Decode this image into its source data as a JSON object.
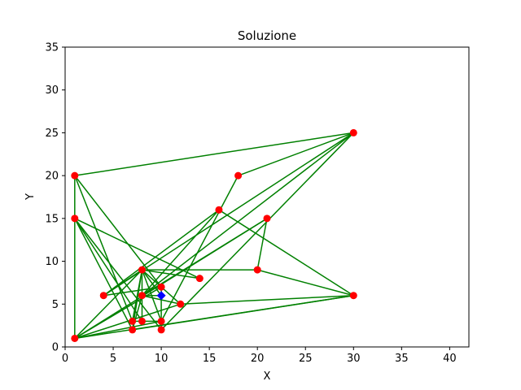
{
  "chart_data": {
    "type": "scatter",
    "title": "Soluzione",
    "xlabel": "X",
    "ylabel": "Y",
    "xlim": [
      0,
      42
    ],
    "ylim": [
      0,
      35
    ],
    "xticks": [
      0,
      5,
      10,
      15,
      20,
      25,
      30,
      35,
      40
    ],
    "yticks": [
      0,
      5,
      10,
      15,
      20,
      25,
      30,
      35
    ],
    "grid": false,
    "colors": {
      "edges": "#008000",
      "nodes": "#ff0000",
      "depot": "#0000ff"
    },
    "depot": {
      "x": 10,
      "y": 6
    },
    "nodes": [
      {
        "x": 1,
        "y": 20
      },
      {
        "x": 1,
        "y": 15
      },
      {
        "x": 1,
        "y": 1
      },
      {
        "x": 4,
        "y": 6
      },
      {
        "x": 7,
        "y": 3
      },
      {
        "x": 7,
        "y": 2
      },
      {
        "x": 8,
        "y": 9
      },
      {
        "x": 8,
        "y": 6
      },
      {
        "x": 8,
        "y": 3
      },
      {
        "x": 10,
        "y": 7
      },
      {
        "x": 10,
        "y": 3
      },
      {
        "x": 10,
        "y": 2
      },
      {
        "x": 12,
        "y": 5
      },
      {
        "x": 14,
        "y": 8
      },
      {
        "x": 16,
        "y": 16
      },
      {
        "x": 18,
        "y": 20
      },
      {
        "x": 20,
        "y": 9
      },
      {
        "x": 21,
        "y": 15
      },
      {
        "x": 30,
        "y": 25
      },
      {
        "x": 30,
        "y": 6
      }
    ],
    "edges": [
      [
        [
          1,
          20
        ],
        [
          30,
          25
        ]
      ],
      [
        [
          1,
          20
        ],
        [
          1,
          1
        ]
      ],
      [
        [
          1,
          20
        ],
        [
          7,
          3
        ]
      ],
      [
        [
          1,
          20
        ],
        [
          10,
          7
        ]
      ],
      [
        [
          1,
          15
        ],
        [
          7,
          2
        ]
      ],
      [
        [
          1,
          15
        ],
        [
          8,
          3
        ]
      ],
      [
        [
          1,
          15
        ],
        [
          10,
          2
        ]
      ],
      [
        [
          1,
          15
        ],
        [
          14,
          8
        ]
      ],
      [
        [
          1,
          1
        ],
        [
          8,
          9
        ]
      ],
      [
        [
          1,
          1
        ],
        [
          10,
          7
        ]
      ],
      [
        [
          1,
          1
        ],
        [
          10,
          3
        ]
      ],
      [
        [
          1,
          1
        ],
        [
          30,
          6
        ]
      ],
      [
        [
          1,
          1
        ],
        [
          21,
          15
        ]
      ],
      [
        [
          1,
          1
        ],
        [
          12,
          5
        ]
      ],
      [
        [
          4,
          6
        ],
        [
          8,
          9
        ]
      ],
      [
        [
          4,
          6
        ],
        [
          10,
          7
        ]
      ],
      [
        [
          4,
          6
        ],
        [
          16,
          16
        ]
      ],
      [
        [
          4,
          6
        ],
        [
          30,
          25
        ]
      ],
      [
        [
          8,
          9
        ],
        [
          20,
          9
        ]
      ],
      [
        [
          8,
          9
        ],
        [
          7,
          2
        ]
      ],
      [
        [
          8,
          9
        ],
        [
          7,
          3
        ]
      ],
      [
        [
          8,
          9
        ],
        [
          10,
          3
        ]
      ],
      [
        [
          8,
          9
        ],
        [
          8,
          3
        ]
      ],
      [
        [
          8,
          9
        ],
        [
          14,
          8
        ]
      ],
      [
        [
          8,
          9
        ],
        [
          10,
          6
        ]
      ],
      [
        [
          7,
          3
        ],
        [
          10,
          3
        ]
      ],
      [
        [
          7,
          2
        ],
        [
          30,
          6
        ]
      ],
      [
        [
          7,
          2
        ],
        [
          8,
          6
        ]
      ],
      [
        [
          8,
          6
        ],
        [
          10,
          6
        ]
      ],
      [
        [
          8,
          6
        ],
        [
          12,
          5
        ]
      ],
      [
        [
          8,
          6
        ],
        [
          30,
          25
        ]
      ],
      [
        [
          8,
          6
        ],
        [
          21,
          15
        ]
      ],
      [
        [
          10,
          2
        ],
        [
          10,
          7
        ]
      ],
      [
        [
          12,
          5
        ],
        [
          30,
          6
        ]
      ],
      [
        [
          12,
          5
        ],
        [
          8,
          9
        ]
      ],
      [
        [
          16,
          16
        ],
        [
          30,
          6
        ]
      ],
      [
        [
          16,
          16
        ],
        [
          8,
          6
        ]
      ],
      [
        [
          18,
          20
        ],
        [
          30,
          25
        ]
      ],
      [
        [
          18,
          20
        ],
        [
          10,
          3
        ]
      ],
      [
        [
          20,
          9
        ],
        [
          21,
          15
        ]
      ],
      [
        [
          20,
          9
        ],
        [
          30,
          6
        ]
      ],
      [
        [
          30,
          25
        ],
        [
          10,
          2
        ]
      ]
    ]
  }
}
